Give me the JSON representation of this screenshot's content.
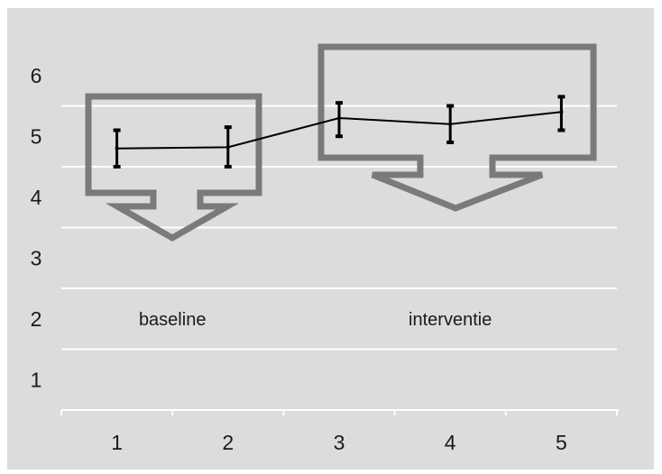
{
  "chart_data": {
    "type": "line",
    "title": "",
    "xlabel": "",
    "ylabel": "",
    "x": [
      1,
      2,
      3,
      4,
      5
    ],
    "xticks": [
      "1",
      "2",
      "3",
      "4",
      "5"
    ],
    "yticks": [
      "1",
      "2",
      "3",
      "4",
      "5",
      "6"
    ],
    "ylim": [
      0.5,
      6.5
    ],
    "grid": true,
    "series": [
      {
        "values": [
          4.8,
          4.82,
          5.3,
          5.2,
          5.4
        ],
        "error_low": [
          4.5,
          4.5,
          5.0,
          4.9,
          5.1
        ],
        "error_high": [
          5.1,
          5.15,
          5.55,
          5.5,
          5.65
        ]
      }
    ],
    "annotations": [
      {
        "text": "baseline",
        "x": 1.5,
        "y": 2.0
      },
      {
        "text": "interventie",
        "x": 4.0,
        "y": 2.0
      }
    ],
    "phases": [
      {
        "label": "baseline",
        "x_from": 1,
        "x_to": 2
      },
      {
        "label": "interventie",
        "x_from": 3,
        "x_to": 5
      }
    ],
    "colors": {
      "background": "#dcdcdc",
      "gridline": "#ffffff",
      "line": "#000000",
      "arrow_outline": "#7a7a7a",
      "text": "#1a1a1a"
    }
  }
}
